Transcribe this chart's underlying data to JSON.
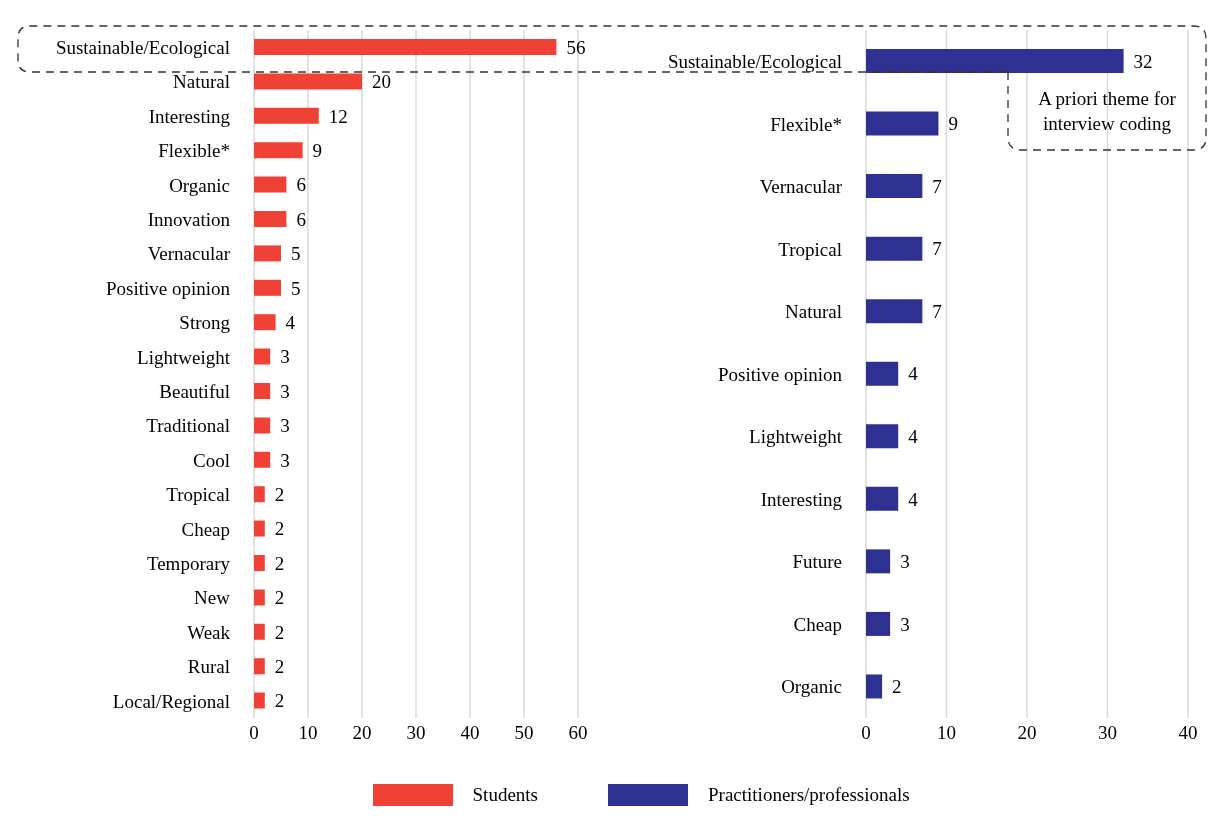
{
  "chart_data": [
    {
      "type": "bar",
      "orientation": "horizontal",
      "categories": [
        "Sustainable/Ecological",
        "Natural",
        "Interesting",
        "Flexible*",
        "Organic",
        "Innovation",
        "Vernacular",
        "Positive opinion",
        "Strong",
        "Lightweight",
        "Beautiful",
        "Traditional",
        "Cool",
        "Tropical",
        "Cheap",
        "Temporary",
        "New",
        "Weak",
        "Rural",
        "Local/Regional"
      ],
      "series": [
        {
          "name": "Students",
          "color": "#ef4136",
          "values": [
            56,
            20,
            12,
            9,
            6,
            6,
            5,
            5,
            4,
            3,
            3,
            3,
            3,
            2,
            2,
            2,
            2,
            2,
            2,
            2
          ]
        }
      ],
      "xlim": [
        0,
        60
      ],
      "xticks": [
        0,
        10,
        20,
        30,
        40,
        50,
        60
      ],
      "grid": "x",
      "data_labels": true,
      "legend": "bottom"
    },
    {
      "type": "bar",
      "orientation": "horizontal",
      "categories": [
        "Sustainable/Ecological",
        "Flexible*",
        "Vernacular",
        "Tropical",
        "Natural",
        "Positive opinion",
        "Lightweight",
        "Interesting",
        "Future",
        "Cheap",
        "Organic"
      ],
      "series": [
        {
          "name": "Practitioners/professionals",
          "color": "#2e3192",
          "values": [
            32,
            9,
            7,
            7,
            7,
            4,
            4,
            4,
            3,
            3,
            2
          ]
        }
      ],
      "xlim": [
        0,
        40
      ],
      "xticks": [
        0,
        10,
        20,
        30,
        40
      ],
      "grid": "x",
      "data_labels": true,
      "legend": "bottom",
      "annotations": [
        "A priori theme for interview coding"
      ]
    }
  ]
}
